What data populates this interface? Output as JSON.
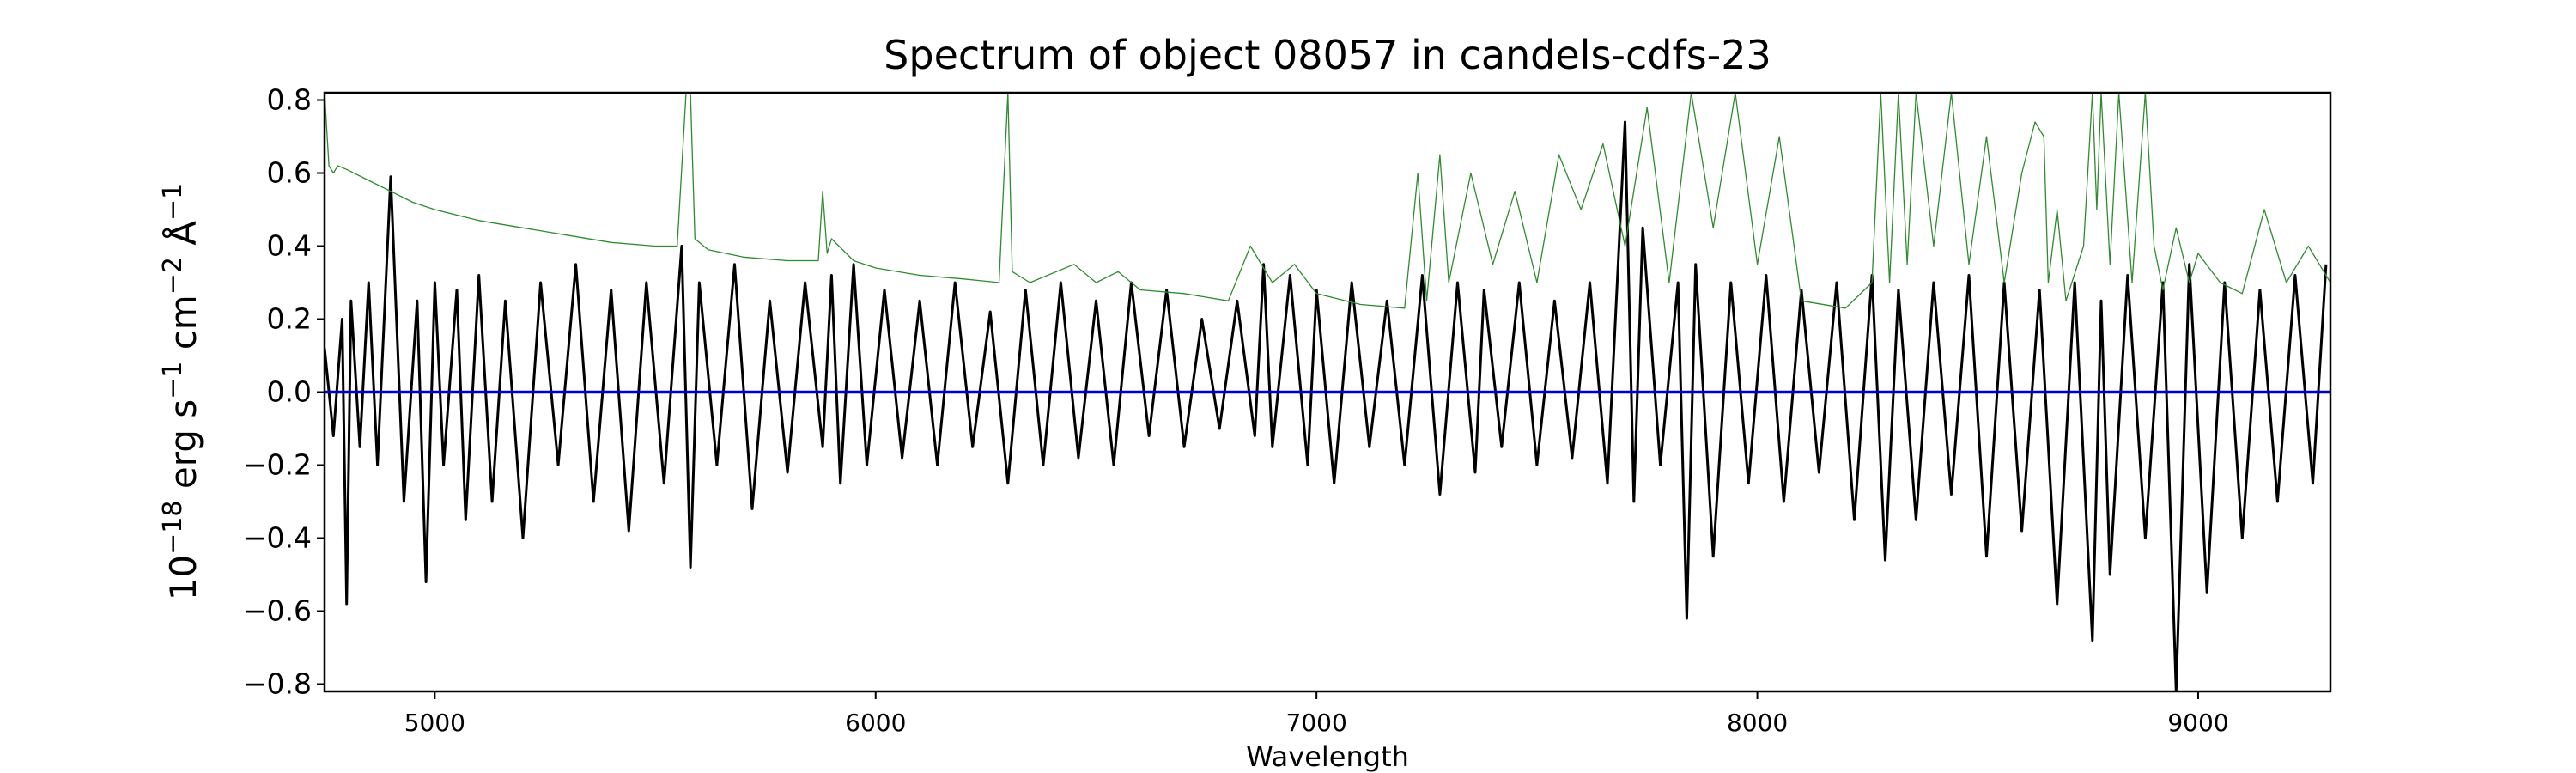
{
  "chart_data": {
    "type": "line",
    "title": "Spectrum of object 08057 in candels-cdfs-23",
    "xlabel": "Wavelength",
    "ylabel": {
      "prefix": "10",
      "exp1": "−18",
      "mid1": " erg s",
      "exp2": "−1",
      "mid2": " cm",
      "exp3": "−2",
      "mid3": " Å",
      "exp4": "−1"
    },
    "xlim": [
      4750,
      9300
    ],
    "ylim": [
      -0.82,
      0.82
    ],
    "xticks": [
      {
        "value": 5000,
        "label": "5000"
      },
      {
        "value": 6000,
        "label": "6000"
      },
      {
        "value": 7000,
        "label": "7000"
      },
      {
        "value": 8000,
        "label": "8000"
      },
      {
        "value": 9000,
        "label": "9000"
      }
    ],
    "yticks": [
      {
        "value": 0.8,
        "label": "0.8"
      },
      {
        "value": 0.6,
        "label": "0.6"
      },
      {
        "value": 0.4,
        "label": "0.4"
      },
      {
        "value": 0.2,
        "label": "0.2"
      },
      {
        "value": 0.0,
        "label": "0.0"
      },
      {
        "value": -0.2,
        "label": "−0.2"
      },
      {
        "value": -0.4,
        "label": "−0.4"
      },
      {
        "value": -0.6,
        "label": "−0.6"
      },
      {
        "value": -0.8,
        "label": "−0.8"
      }
    ],
    "grid": false,
    "series": [
      {
        "key": "flux",
        "color": "#000000",
        "x": [
          4750,
          4770,
          4790,
          4800,
          4810,
          4830,
          4850,
          4870,
          4900,
          4930,
          4960,
          4980,
          5000,
          5020,
          5050,
          5070,
          5100,
          5130,
          5160,
          5200,
          5240,
          5280,
          5320,
          5360,
          5400,
          5440,
          5480,
          5520,
          5560,
          5580,
          5600,
          5640,
          5680,
          5720,
          5760,
          5800,
          5840,
          5880,
          5900,
          5920,
          5950,
          5980,
          6020,
          6060,
          6100,
          6140,
          6180,
          6220,
          6260,
          6300,
          6340,
          6380,
          6420,
          6460,
          6500,
          6540,
          6580,
          6620,
          6660,
          6700,
          6740,
          6780,
          6820,
          6860,
          6880,
          6900,
          6940,
          6980,
          7000,
          7040,
          7080,
          7120,
          7160,
          7200,
          7240,
          7280,
          7320,
          7360,
          7380,
          7420,
          7460,
          7500,
          7540,
          7580,
          7620,
          7660,
          7700,
          7720,
          7740,
          7780,
          7820,
          7840,
          7860,
          7900,
          7940,
          7980,
          8020,
          8060,
          8100,
          8140,
          8180,
          8220,
          8260,
          8290,
          8320,
          8360,
          8400,
          8440,
          8480,
          8520,
          8560,
          8600,
          8640,
          8680,
          8720,
          8760,
          8780,
          8800,
          8840,
          8880,
          8920,
          8950,
          8980,
          9020,
          9060,
          9100,
          9140,
          9180,
          9220,
          9260,
          9290
        ],
        "y": [
          0.12,
          -0.12,
          0.2,
          -0.58,
          0.25,
          -0.15,
          0.3,
          -0.2,
          0.59,
          -0.3,
          0.25,
          -0.52,
          0.3,
          -0.2,
          0.28,
          -0.35,
          0.32,
          -0.3,
          0.25,
          -0.4,
          0.3,
          -0.2,
          0.35,
          -0.3,
          0.28,
          -0.38,
          0.3,
          -0.25,
          0.4,
          -0.48,
          0.3,
          -0.2,
          0.35,
          -0.32,
          0.25,
          -0.22,
          0.3,
          -0.15,
          0.32,
          -0.25,
          0.35,
          -0.2,
          0.28,
          -0.18,
          0.25,
          -0.2,
          0.3,
          -0.15,
          0.22,
          -0.25,
          0.28,
          -0.2,
          0.3,
          -0.18,
          0.25,
          -0.2,
          0.3,
          -0.12,
          0.28,
          -0.15,
          0.2,
          -0.1,
          0.25,
          -0.12,
          0.35,
          -0.15,
          0.32,
          -0.2,
          0.28,
          -0.25,
          0.3,
          -0.15,
          0.25,
          -0.2,
          0.32,
          -0.28,
          0.3,
          -0.22,
          0.28,
          -0.15,
          0.3,
          -0.2,
          0.25,
          -0.18,
          0.3,
          -0.25,
          0.74,
          -0.3,
          0.45,
          -0.2,
          0.3,
          -0.62,
          0.35,
          -0.45,
          0.3,
          -0.25,
          0.32,
          -0.3,
          0.28,
          -0.22,
          0.3,
          -0.35,
          0.32,
          -0.46,
          0.28,
          -0.35,
          0.3,
          -0.28,
          0.32,
          -0.45,
          0.3,
          -0.38,
          0.28,
          -0.58,
          0.3,
          -0.68,
          0.25,
          -0.5,
          0.32,
          -0.4,
          0.3,
          -0.82,
          0.35,
          -0.55,
          0.3,
          -0.4,
          0.28,
          -0.3,
          0.32,
          -0.25,
          0.35
        ]
      },
      {
        "key": "error",
        "color": "#2e8b2e",
        "x": [
          4750,
          4760,
          4770,
          4780,
          4800,
          4850,
          4900,
          4950,
          5000,
          5100,
          5200,
          5300,
          5400,
          5500,
          5550,
          5570,
          5580,
          5590,
          5620,
          5700,
          5800,
          5870,
          5880,
          5890,
          5900,
          5950,
          6000,
          6100,
          6200,
          6280,
          6300,
          6310,
          6350,
          6450,
          6500,
          6550,
          6600,
          6700,
          6800,
          6850,
          6900,
          6950,
          7000,
          7100,
          7200,
          7230,
          7250,
          7280,
          7300,
          7350,
          7400,
          7450,
          7500,
          7550,
          7600,
          7650,
          7700,
          7750,
          7800,
          7850,
          7900,
          7950,
          8000,
          8050,
          8100,
          8200,
          8260,
          8280,
          8300,
          8320,
          8340,
          8360,
          8400,
          8440,
          8480,
          8520,
          8560,
          8600,
          8630,
          8650,
          8660,
          8680,
          8700,
          8740,
          8760,
          8770,
          8780,
          8800,
          8820,
          8850,
          8880,
          8900,
          8920,
          8950,
          8980,
          9000,
          9050,
          9100,
          9150,
          9200,
          9250,
          9300
        ],
        "y": [
          0.82,
          0.62,
          0.6,
          0.62,
          0.61,
          0.58,
          0.55,
          0.52,
          0.5,
          0.47,
          0.45,
          0.43,
          0.41,
          0.4,
          0.4,
          0.82,
          0.82,
          0.42,
          0.39,
          0.37,
          0.36,
          0.36,
          0.55,
          0.38,
          0.42,
          0.36,
          0.34,
          0.32,
          0.31,
          0.3,
          0.82,
          0.33,
          0.3,
          0.35,
          0.3,
          0.33,
          0.28,
          0.27,
          0.25,
          0.4,
          0.3,
          0.35,
          0.27,
          0.24,
          0.23,
          0.6,
          0.25,
          0.65,
          0.3,
          0.6,
          0.35,
          0.55,
          0.3,
          0.65,
          0.5,
          0.68,
          0.4,
          0.78,
          0.3,
          0.82,
          0.45,
          0.82,
          0.35,
          0.7,
          0.25,
          0.23,
          0.3,
          0.82,
          0.3,
          0.82,
          0.35,
          0.82,
          0.4,
          0.82,
          0.35,
          0.7,
          0.3,
          0.6,
          0.74,
          0.7,
          0.3,
          0.5,
          0.25,
          0.4,
          0.82,
          0.5,
          0.82,
          0.35,
          0.82,
          0.3,
          0.82,
          0.4,
          0.28,
          0.45,
          0.3,
          0.38,
          0.3,
          0.27,
          0.5,
          0.3,
          0.4,
          0.3
        ]
      },
      {
        "key": "continuum",
        "color": "#0000cc",
        "x": [
          4750,
          9300
        ],
        "y": [
          0.0,
          0.0
        ]
      }
    ]
  }
}
